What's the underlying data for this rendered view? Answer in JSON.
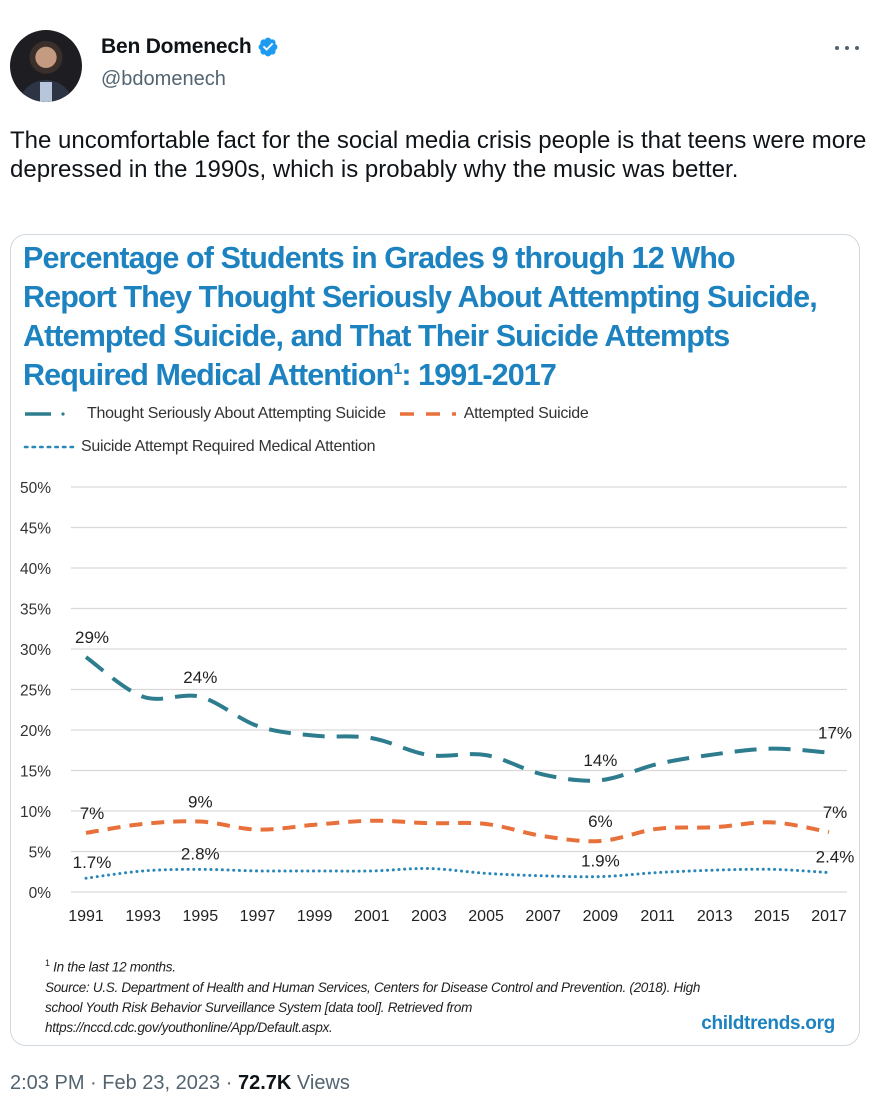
{
  "tweet": {
    "author": {
      "display_name": "Ben Domenech",
      "handle": "@bdomenech",
      "verified": true,
      "avatar_icon": "user-photo"
    },
    "more_icon": "ellipsis-icon",
    "text": "The uncomfortable fact for the social media crisis people is that teens were more depressed in the 1990s, which is probably why the music was better.",
    "timestamp": "2:03 PM",
    "separator": "·",
    "date": "Feb 23, 2023",
    "views_count": "72.7K",
    "views_label": "Views"
  },
  "colors": {
    "brand_blue": "#1d82c0",
    "verified_blue": "#1d9bf0",
    "series_thought": "#2e7d8e",
    "series_attempted": "#e8703a",
    "series_medical": "#2a88b8",
    "gridline": "#d9d9d9"
  },
  "card": {
    "title_main": "Percentage of Students in Grades 9 through 12 Who Report They Thought Seriously About Attempting Suicide, Attempted Suicide, and That Their Suicide Attempts Required Medical Attention",
    "title_sup": "1",
    "title_suffix": ": 1991-2017",
    "footnote_sup": "1",
    "footnote_text": "In the last 12 months.",
    "source_line1": "Source: U.S. Department of Health and Human Services, Centers for Disease Control and Prevention. (2018). High",
    "source_line2": "school Youth Risk Behavior Surveillance System [data tool]. Retrieved from",
    "source_line3": "https://nccd.cdc.gov/youthonline/App/Default.aspx.",
    "brand": "childtrends.org"
  },
  "chart_data": {
    "type": "line",
    "title": "Percentage of Students in Grades 9 through 12 Who Report They Thought Seriously About Attempting Suicide, Attempted Suicide, and That Their Suicide Attempts Required Medical Attention¹: 1991-2017",
    "xlabel": "",
    "ylabel": "",
    "x": [
      "1991",
      "1993",
      "1995",
      "1997",
      "1999",
      "2001",
      "2003",
      "2005",
      "2007",
      "2009",
      "2011",
      "2013",
      "2015",
      "2017"
    ],
    "ylim": [
      0,
      50
    ],
    "yticks": [
      0,
      5,
      10,
      15,
      20,
      25,
      30,
      35,
      40,
      45,
      50
    ],
    "ytick_labels": [
      "0%",
      "5%",
      "10%",
      "15%",
      "20%",
      "25%",
      "30%",
      "35%",
      "40%",
      "45%",
      "50%"
    ],
    "grid": true,
    "legend_position": "top-left",
    "series": [
      {
        "name": "Thought Seriously About Attempting Suicide",
        "style": "long-dash",
        "values": [
          29.0,
          24.1,
          24.1,
          20.5,
          19.3,
          19.0,
          16.9,
          16.9,
          14.5,
          13.8,
          15.8,
          17.0,
          17.7,
          17.2
        ],
        "labels": [
          {
            "index": 0,
            "text": "29%"
          },
          {
            "index": 2,
            "text": "24%"
          },
          {
            "index": 9,
            "text": "14%"
          },
          {
            "index": 13,
            "text": "17%"
          }
        ]
      },
      {
        "name": "Attempted Suicide",
        "style": "dash",
        "values": [
          7.3,
          8.4,
          8.7,
          7.7,
          8.3,
          8.8,
          8.5,
          8.4,
          6.9,
          6.3,
          7.8,
          8.0,
          8.6,
          7.4
        ],
        "labels": [
          {
            "index": 0,
            "text": "7%"
          },
          {
            "index": 2,
            "text": "9%"
          },
          {
            "index": 9,
            "text": "6%"
          },
          {
            "index": 13,
            "text": "7%"
          }
        ]
      },
      {
        "name": "Suicide Attempt Required Medical Attention",
        "style": "dotted",
        "values": [
          1.7,
          2.6,
          2.8,
          2.6,
          2.6,
          2.6,
          2.9,
          2.3,
          2.0,
          1.9,
          2.4,
          2.7,
          2.8,
          2.4
        ],
        "labels": [
          {
            "index": 0,
            "text": "1.7%"
          },
          {
            "index": 2,
            "text": "2.8%"
          },
          {
            "index": 9,
            "text": "1.9%"
          },
          {
            "index": 13,
            "text": "2.4%"
          }
        ]
      }
    ]
  }
}
